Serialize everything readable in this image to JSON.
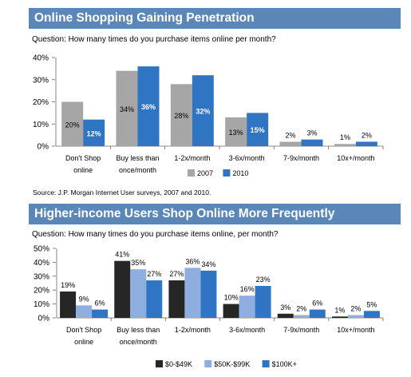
{
  "section1": {
    "banner_title": "Online Shopping Gaining Penetration",
    "question": "Question: How many times do you purchase items online per month?",
    "source": "Source: J.P. Morgan Internet User surveys, 2007 and 2010."
  },
  "section2": {
    "banner_title": "Higher-income Users Shop Online More Frequently",
    "question": "Question: How many times do you purchase items online, per month?"
  },
  "chart_data": [
    {
      "type": "bar",
      "categories": [
        "Don't Shop\nonline",
        "Buy less than\nonce/month",
        "1-2x/month",
        "3-6x/month",
        "7-9x/month",
        "10x+/month"
      ],
      "ylim": [
        0,
        40
      ],
      "yticks": [
        "0%",
        "10%",
        "20%",
        "30%",
        "40%"
      ],
      "series": [
        {
          "name": "2007",
          "color": "#a6a6a6",
          "values": [
            20,
            34,
            28,
            13,
            2,
            1
          ],
          "labels": [
            "20%",
            "34%",
            "28%",
            "13%",
            "2%",
            "1%"
          ]
        },
        {
          "name": "2010",
          "color": "#2f75c4",
          "values": [
            12,
            36,
            32,
            15,
            3,
            2
          ],
          "labels": [
            "12%",
            "36%",
            "32%",
            "15%",
            "3%",
            "2%"
          ]
        }
      ],
      "legend_position": "bottom-right"
    },
    {
      "type": "bar",
      "categories": [
        "Don't Shop\nonline",
        "Buy less than\nonce/month",
        "1-2x/month",
        "3-6x/month",
        "7-9x/month",
        "10x+/month"
      ],
      "ylim": [
        0,
        50
      ],
      "yticks": [
        "0%",
        "10%",
        "20%",
        "30%",
        "40%",
        "50%"
      ],
      "series": [
        {
          "name": "$0-$49K",
          "color": "#262626",
          "values": [
            19,
            41,
            27,
            10,
            3,
            1
          ],
          "labels": [
            "19%",
            "41%",
            "27%",
            "10%",
            "3%",
            "1%"
          ]
        },
        {
          "name": "$50K-$99K",
          "color": "#8eaee0",
          "values": [
            9,
            35,
            36,
            16,
            2,
            2
          ],
          "labels": [
            "9%",
            "35%",
            "36%",
            "16%",
            "2%",
            "2%"
          ]
        },
        {
          "name": "$100K+",
          "color": "#2f75c4",
          "values": [
            6,
            27,
            34,
            23,
            6,
            5
          ],
          "labels": [
            "6%",
            "27%",
            "34%",
            "23%",
            "6%",
            "5%"
          ]
        }
      ],
      "legend_position": "bottom-right"
    }
  ]
}
